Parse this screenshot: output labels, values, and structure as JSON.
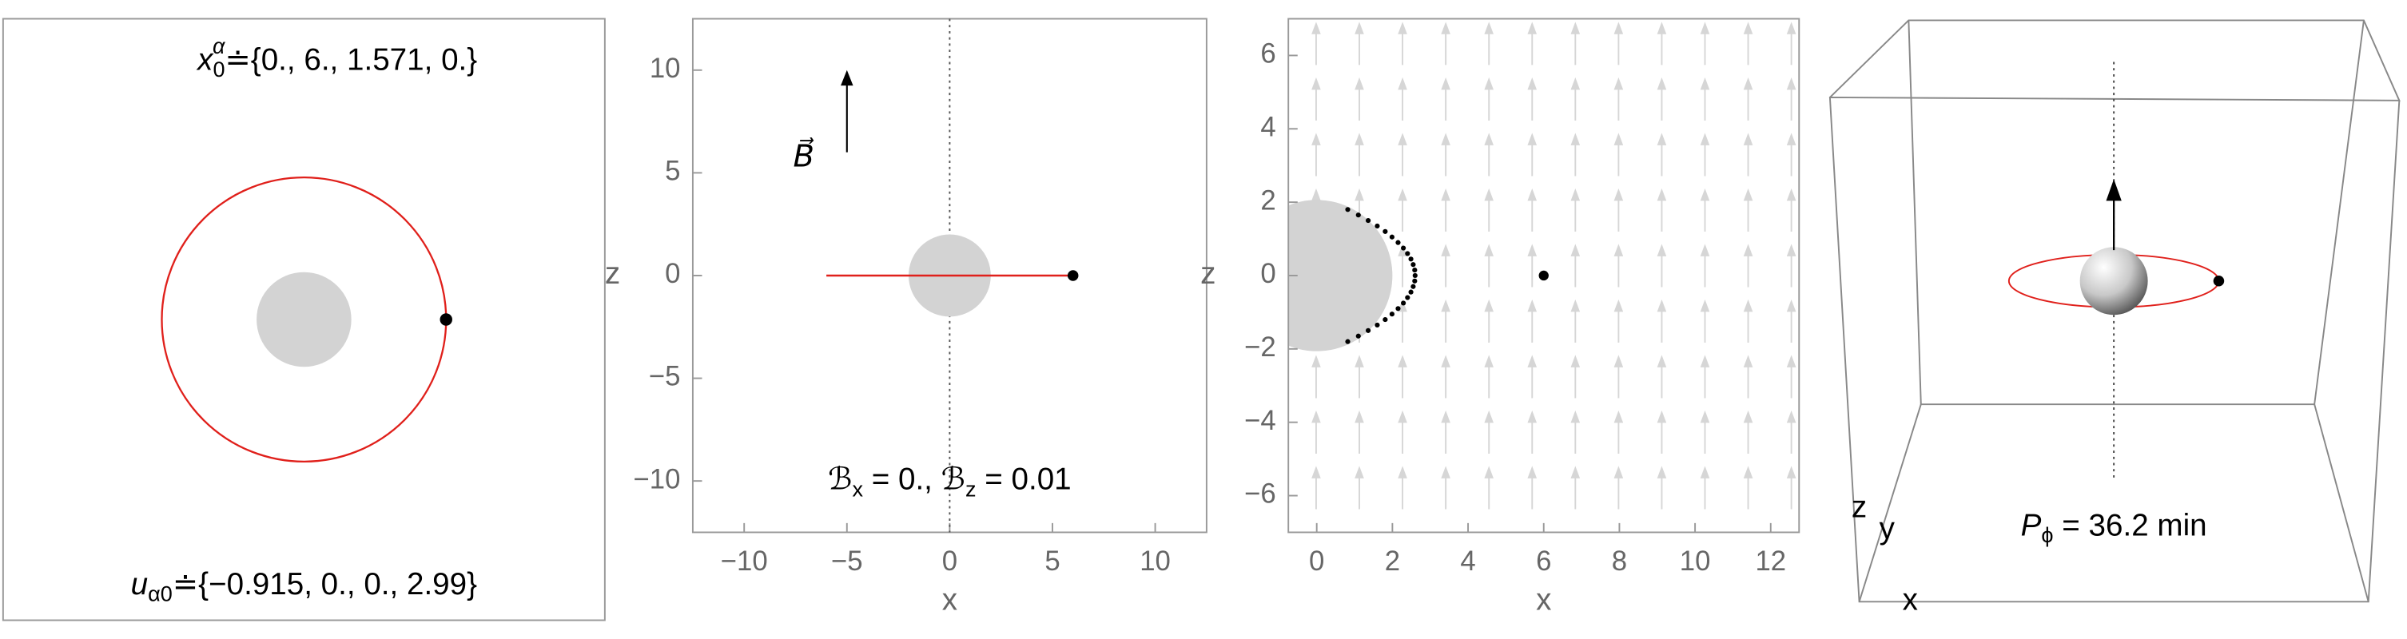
{
  "chart_data": [
    {
      "type": "orbit-view",
      "xlim": [
        -12.7,
        12.7
      ],
      "ylim": [
        -12.7,
        12.7
      ],
      "orbit_radius": 6,
      "body_radius": 2,
      "particle": {
        "x": 6,
        "y": 0
      },
      "orbit_color": "#e0201b",
      "x0_label": {
        "base": "x",
        "sub": "0",
        "sup": "α",
        "rest": "≐{0., 6., 1.571, 0.}"
      },
      "u0_label": [
        "u",
        "α0",
        "≐{−0.915, 0., 0., 2.99}"
      ]
    },
    {
      "type": "orbit-xz",
      "xlabel": "x",
      "ylabel": "z",
      "xlim": [
        -12.5,
        12.5
      ],
      "ylim": [
        -12.5,
        12.5
      ],
      "xticks": [
        {
          "value": -10,
          "label": "−10"
        },
        {
          "value": -5,
          "label": "−5"
        },
        0,
        5,
        10
      ],
      "yticks": [
        {
          "value": -10,
          "label": "−10"
        },
        {
          "value": -5,
          "label": "−5"
        },
        0,
        5,
        10
      ],
      "trajectory": {
        "x": [
          -6,
          6
        ],
        "z": [
          0,
          0
        ],
        "color": "#e0201b"
      },
      "particle": {
        "x": 6,
        "z": 0
      },
      "body_radius": 2,
      "field_arrow": {
        "x": -5,
        "z": [
          6,
          10
        ]
      },
      "field_symbol": "B⃗",
      "field_label": [
        "ℬ",
        "x",
        " = 0., ℬ",
        "z",
        " = 0.01"
      ]
    },
    {
      "type": "field-xz",
      "xlabel": "x",
      "ylabel": "z",
      "xlim": [
        -0.75,
        12.75
      ],
      "ylim": [
        -7,
        7
      ],
      "xticks": [
        0,
        2,
        4,
        6,
        8,
        10,
        12
      ],
      "yticks": [
        {
          "value": -6,
          "label": "−6"
        },
        {
          "value": -4,
          "label": "−4"
        },
        {
          "value": -2,
          "label": "−2"
        },
        0,
        2,
        4,
        6
      ],
      "particle": {
        "x": 6,
        "z": 0
      },
      "body_radius": 2,
      "boundary": {
        "x": [
          0.82,
          1.1,
          1.36,
          1.6,
          1.81,
          1.99,
          2.15,
          2.29,
          2.4,
          2.49,
          2.55,
          2.59,
          2.6,
          2.59,
          2.55,
          2.49,
          2.4,
          2.29,
          2.15,
          1.99,
          1.81,
          1.6,
          1.36,
          1.1,
          0.82
        ],
        "z": [
          -1.8,
          -1.65,
          -1.5,
          -1.35,
          -1.2,
          -1.05,
          -0.9,
          -0.75,
          -0.6,
          -0.45,
          -0.3,
          -0.15,
          0,
          0.15,
          0.3,
          0.45,
          0.6,
          0.75,
          0.9,
          1.05,
          1.2,
          1.35,
          1.5,
          1.65,
          1.8
        ]
      }
    },
    {
      "type": "orbit-3d",
      "axis_labels": {
        "z": "z",
        "y": "y",
        "x": "x"
      },
      "period_label": [
        "P",
        "ϕ",
        " = 36.2 min"
      ]
    }
  ]
}
